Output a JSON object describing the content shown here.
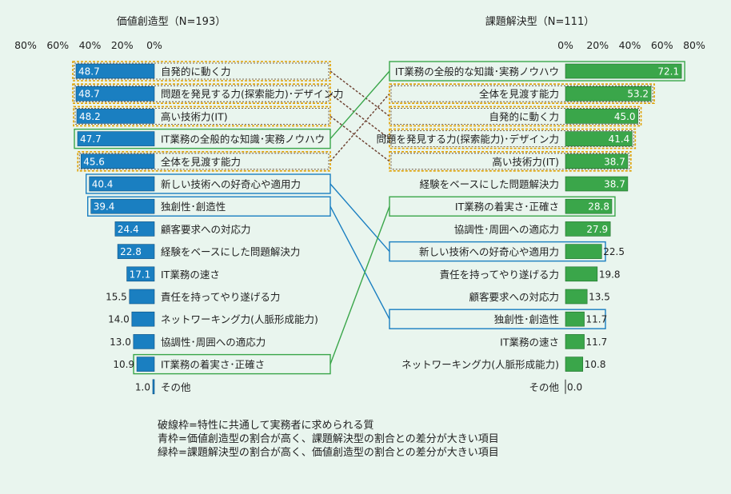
{
  "chart_data": [
    {
      "type": "bar",
      "orientation": "horizontal",
      "direction": "right-to-left",
      "title": "価値創造型（N=193）",
      "xlim": [
        0,
        80
      ],
      "ticks": [
        "80%",
        "60%",
        "40%",
        "20%",
        "0%"
      ],
      "color": "#1a7fc1",
      "categories": [
        "自発的に動く力",
        "問題を発見する力(探索能力)･デザイン力",
        "高い技術力(IT)",
        "IT業務の全般的な知識･実務ノウハウ",
        "全体を見渡す能力",
        "新しい技術への好奇心や適用力",
        "独創性･創造性",
        "顧客要求への対応力",
        "経験をベースにした問題解決力",
        "IT業務の速さ",
        "責任を持ってやり遂げる力",
        "ネットワーキング力(人脈形成能力)",
        "協調性･周囲への適応力",
        "IT業務の着実さ･正確さ",
        "その他"
      ],
      "values": [
        48.7,
        48.7,
        48.2,
        47.7,
        45.6,
        40.4,
        39.4,
        24.4,
        22.8,
        17.1,
        15.5,
        14.0,
        13.0,
        10.9,
        1.0
      ],
      "labels": [
        "48.7",
        "48.7",
        "48.2",
        "47.7",
        "45.6",
        "40.4",
        "39.4",
        "24.4",
        "22.8",
        "17.1",
        "15.5",
        "14.0",
        "13.0",
        "10.9",
        "1.0"
      ],
      "frames": [
        "common",
        "common",
        "common",
        "green",
        "common",
        "blue",
        "blue",
        "",
        "",
        "",
        "",
        "",
        "",
        "green",
        ""
      ]
    },
    {
      "type": "bar",
      "orientation": "horizontal",
      "title": "課題解決型（N=111）",
      "xlim": [
        0,
        80
      ],
      "ticks": [
        "0%",
        "20%",
        "40%",
        "60%",
        "80%"
      ],
      "color": "#3aa64a",
      "categories": [
        "IT業務の全般的な知識･実務ノウハウ",
        "全体を見渡す能力",
        "自発的に動く力",
        "問題を発見する力(探索能力)･デザイン力",
        "高い技術力(IT)",
        "経験をベースにした問題解決力",
        "IT業務の着実さ･正確さ",
        "協調性･周囲への適応力",
        "新しい技術への好奇心や適用力",
        "責任を持ってやり遂げる力",
        "顧客要求への対応力",
        "独創性･創造性",
        "IT業務の速さ",
        "ネットワーキング力(人脈形成能力)",
        "その他"
      ],
      "values": [
        72.1,
        53.2,
        45.0,
        41.4,
        38.7,
        38.7,
        28.8,
        27.9,
        22.5,
        19.8,
        13.5,
        11.7,
        11.7,
        10.8,
        0.0
      ],
      "labels": [
        "72.1",
        "53.2",
        "45.0",
        "41.4",
        "38.7",
        "38.7",
        "28.8",
        "27.9",
        "22.5",
        "19.8",
        "13.5",
        "11.7",
        "11.7",
        "10.8",
        "0.0"
      ],
      "frames": [
        "green",
        "common",
        "common",
        "common",
        "common",
        "",
        "green",
        "",
        "blue",
        "",
        "",
        "blue",
        "",
        "",
        ""
      ]
    }
  ],
  "links": [
    {
      "left": 0,
      "right": 2,
      "style": "common"
    },
    {
      "left": 1,
      "right": 3,
      "style": "common"
    },
    {
      "left": 2,
      "right": 4,
      "style": "common"
    },
    {
      "left": 3,
      "right": 0,
      "style": "green"
    },
    {
      "left": 4,
      "right": 1,
      "style": "common"
    },
    {
      "left": 5,
      "right": 8,
      "style": "blue"
    },
    {
      "left": 6,
      "right": 11,
      "style": "blue"
    },
    {
      "left": 13,
      "right": 6,
      "style": "green"
    }
  ],
  "colors": {
    "background": "#e9f5ee",
    "left_bar": "#1a7fc1",
    "right_bar": "#3aa64a",
    "common_frame": "#e0a000",
    "common_link": "#6b3e2e",
    "blue_frame": "#1a7fc1",
    "green_frame": "#3aa64a"
  },
  "legend": {
    "line1": "破線枠=特性に共通して実務者に求められる質",
    "line2": "青枠=価値創造型の割合が高く、課題解決型の割合との差分が大きい項目",
    "line3": "緑枠=課題解決型の割合が高く、価値創造型の割合との差分が大きい項目"
  }
}
